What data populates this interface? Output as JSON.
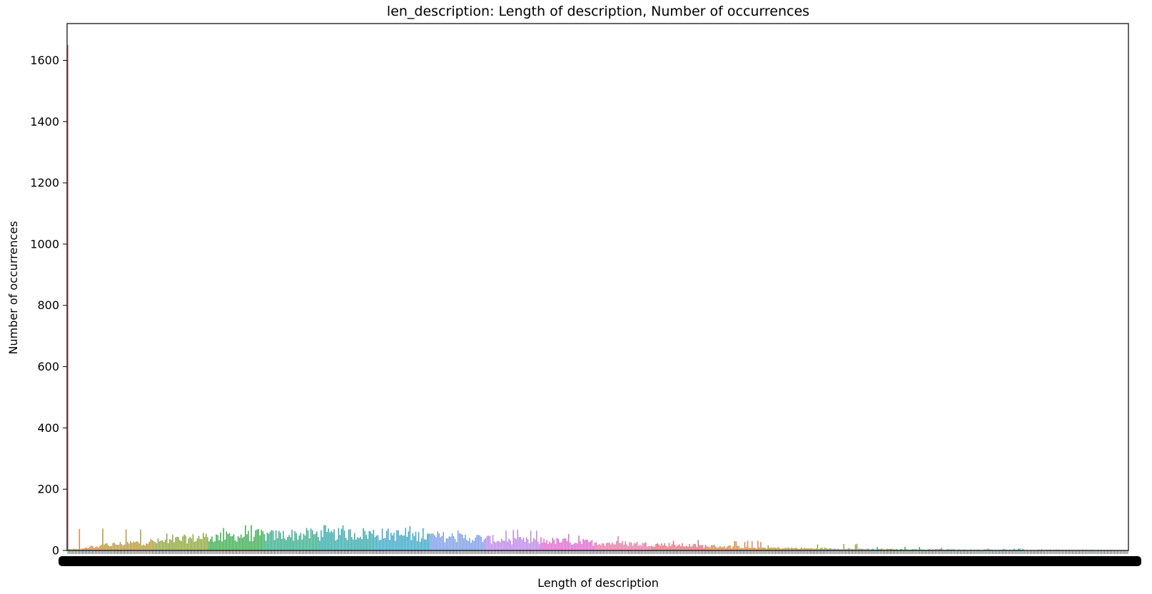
{
  "chart_data": {
    "type": "bar",
    "title": "len_description: Length of description, Number of occurrences",
    "xlabel": "Length of description",
    "ylabel": "Number of occurrences",
    "ylim": [
      0,
      1720
    ],
    "yticks": [
      0,
      200,
      400,
      600,
      800,
      1000,
      1200,
      1400,
      1600
    ],
    "ytick_labels": [
      "0",
      "200",
      "400",
      "600",
      "800",
      "1000",
      "1200",
      "1400",
      "1600"
    ],
    "xtick_labels_rendered": "overlapping (illegible)",
    "grid": false,
    "legend": "none",
    "palette": [
      "#e1727d",
      "#d98a4c",
      "#b79b3d",
      "#8fa940",
      "#3fae52",
      "#3aae8c",
      "#39abab",
      "#3ea8c8",
      "#7d9ee8",
      "#bd87e8",
      "#e06ad0",
      "#e87aa8"
    ],
    "segments": [
      {
        "count": 1,
        "values": [
          1650
        ]
      },
      {
        "count": 22,
        "values": [
          5,
          4,
          3,
          6,
          5,
          4,
          5,
          70,
          4,
          6,
          7,
          9,
          10,
          8,
          12,
          16,
          14,
          9,
          11,
          13,
          10,
          15
        ]
      },
      {
        "count": 37,
        "from": 18,
        "to": 32,
        "peak": 75
      },
      {
        "count": 37,
        "from": 30,
        "to": 48,
        "peak": 60
      },
      {
        "count": 38,
        "from": 45,
        "to": 55,
        "peak": 83
      },
      {
        "count": 38,
        "from": 52,
        "to": 58,
        "peak": 70
      },
      {
        "count": 38,
        "from": 55,
        "to": 60,
        "peak": 85
      },
      {
        "count": 38,
        "from": 58,
        "to": 50,
        "peak": 80
      },
      {
        "count": 38,
        "from": 50,
        "to": 42,
        "peak": 70
      },
      {
        "count": 38,
        "from": 40,
        "to": 32,
        "peak": 68
      },
      {
        "count": 38,
        "from": 35,
        "to": 28,
        "peak": 55
      },
      {
        "count": 38,
        "from": 28,
        "to": 22,
        "peak": 50
      },
      {
        "count": 38,
        "from": 22,
        "to": 16,
        "peak": 35
      },
      {
        "count": 38,
        "from": 16,
        "to": 10,
        "peak": 32
      },
      {
        "count": 38,
        "from": 10,
        "to": 7,
        "peak": 20
      },
      {
        "count": 38,
        "from": 8,
        "to": 5,
        "peak": 22
      },
      {
        "count": 38,
        "from": 5,
        "to": 3,
        "peak": 12
      },
      {
        "count": 38,
        "from": 4,
        "to": 2,
        "peak": 10
      },
      {
        "count": 38,
        "from": 3,
        "to": 1,
        "peak": 6
      },
      {
        "count": 62,
        "from": 2,
        "to": 1,
        "peak": 4
      }
    ]
  }
}
